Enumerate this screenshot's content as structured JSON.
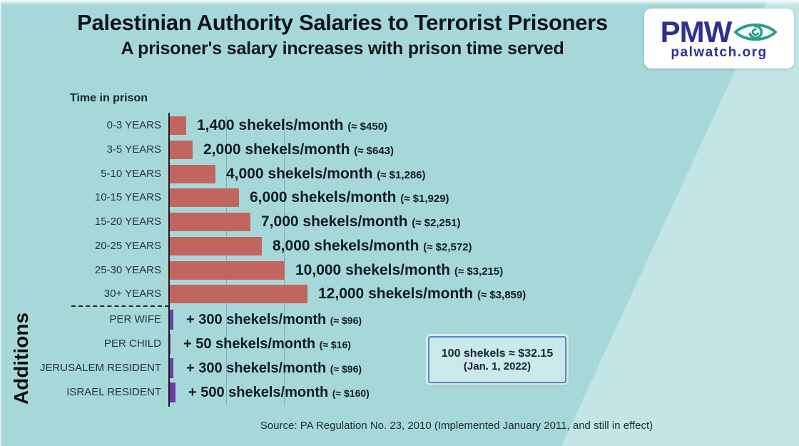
{
  "header": {
    "title": "Palestinian Authority Salaries to Terrorist Prisoners",
    "subtitle": "A prisoner's salary increases with prison time served"
  },
  "logo": {
    "acronym": "PMW",
    "domain": "palwatch.org"
  },
  "chart": {
    "axis_label": "Time in prison",
    "additions_label": "Additions"
  },
  "note": {
    "line1": "100 shekels ≈ $32.15",
    "line2": "(Jan. 1, 2022)"
  },
  "source": "Source: PA Regulation No. 23, 2010 (Implemented January 2011, and still in effect)",
  "colors": {
    "background": "#a7d8d9",
    "background_light": "#c1e6e5",
    "bar": "#c2655f",
    "additions_bar": "#6b3fa1",
    "logo_navy": "#2e3192",
    "logo_teal": "#2a9d8f",
    "note_border": "#5b87c0"
  },
  "chart_data": {
    "type": "bar",
    "orientation": "horizontal",
    "title": "Palestinian Authority Salaries to Terrorist Prisoners",
    "subtitle": "A prisoner's salary increases with prison time served",
    "unit": "shekels/month",
    "xlim": [
      0,
      12000
    ],
    "gridline_interval_shekels": 5000,
    "grid": true,
    "bar_color": "#c2655f",
    "additions_bar_color": "#6b3fa1",
    "rows": [
      {
        "label": "0-3 YEARS",
        "value": 1400,
        "usd": 450,
        "amount_text": "1,400 shekels/month",
        "approx_text": "(≈ $450)"
      },
      {
        "label": "3-5 YEARS",
        "value": 2000,
        "usd": 643,
        "amount_text": "2,000 shekels/month",
        "approx_text": "(≈ $643)"
      },
      {
        "label": "5-10 YEARS",
        "value": 4000,
        "usd": 1286,
        "amount_text": "4,000 shekels/month",
        "approx_text": "(≈ $1,286)"
      },
      {
        "label": "10-15 YEARS",
        "value": 6000,
        "usd": 1929,
        "amount_text": "6,000 shekels/month",
        "approx_text": "(≈ $1,929)"
      },
      {
        "label": "15-20 YEARS",
        "value": 7000,
        "usd": 2251,
        "amount_text": "7,000 shekels/month",
        "approx_text": "(≈ $2,251)"
      },
      {
        "label": "20-25 YEARS",
        "value": 8000,
        "usd": 2572,
        "amount_text": "8,000 shekels/month",
        "approx_text": "(≈ $2,572)"
      },
      {
        "label": "25-30 YEARS",
        "value": 10000,
        "usd": 3215,
        "amount_text": "10,000 shekels/month",
        "approx_text": "(≈ $3,215)"
      },
      {
        "label": "30+ YEARS",
        "value": 12000,
        "usd": 3859,
        "amount_text": "12,000 shekels/month",
        "approx_text": "(≈ $3,859)"
      }
    ],
    "additions": [
      {
        "label": "PER WIFE",
        "value": 300,
        "usd": 96,
        "amount_text": "+ 300 shekels/month",
        "approx_text": "(≈ $96)"
      },
      {
        "label": "PER CHILD",
        "value": 50,
        "usd": 16,
        "amount_text": "+ 50 shekels/month",
        "approx_text": "(≈ $16)"
      },
      {
        "label": "JERUSALEM RESIDENT",
        "value": 300,
        "usd": 96,
        "amount_text": "+ 300 shekels/month",
        "approx_text": "(≈ $96)"
      },
      {
        "label": "ISRAEL RESIDENT",
        "value": 500,
        "usd": 160,
        "amount_text": "+ 500 shekels/month",
        "approx_text": "(≈ $160)"
      }
    ]
  }
}
